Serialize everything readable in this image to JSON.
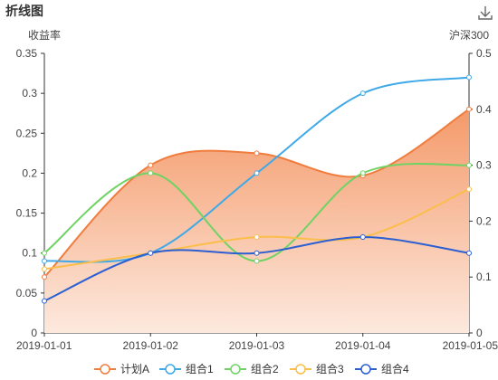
{
  "header": {
    "title": "折线图",
    "download_icon": "download-icon"
  },
  "chart_data": {
    "type": "area",
    "categories": [
      "2019-01-01",
      "2019-01-02",
      "2019-01-03",
      "2019-01-04",
      "2019-01-05"
    ],
    "y_left": {
      "name": "收益率",
      "min": 0,
      "max": 0.35,
      "ticks": [
        "0",
        "0.05",
        "0.1",
        "0.15",
        "0.2",
        "0.25",
        "0.3",
        "0.35"
      ]
    },
    "y_right": {
      "name": "沪深300",
      "min": 0,
      "max": 0.5,
      "ticks": [
        "0",
        "0.1",
        "0.2",
        "0.3",
        "0.4",
        "0.5"
      ]
    },
    "series": [
      {
        "name": "计划A",
        "color": "#f07c3e",
        "area": true,
        "values": [
          0.07,
          0.21,
          0.225,
          0.197,
          0.28
        ]
      },
      {
        "name": "组合1",
        "color": "#3fa9e8",
        "values": [
          0.09,
          0.1,
          0.2,
          0.3,
          0.32
        ]
      },
      {
        "name": "组合2",
        "color": "#6fd364",
        "values": [
          0.1,
          0.2,
          0.09,
          0.2,
          0.21
        ]
      },
      {
        "name": "组合3",
        "color": "#fbbe4b",
        "values": [
          0.08,
          0.1,
          0.12,
          0.12,
          0.18
        ]
      },
      {
        "name": "组合4",
        "color": "#2b5fd2",
        "values": [
          0.04,
          0.1,
          0.1,
          0.12,
          0.1
        ]
      }
    ],
    "grid": false,
    "legend": "bottom"
  }
}
